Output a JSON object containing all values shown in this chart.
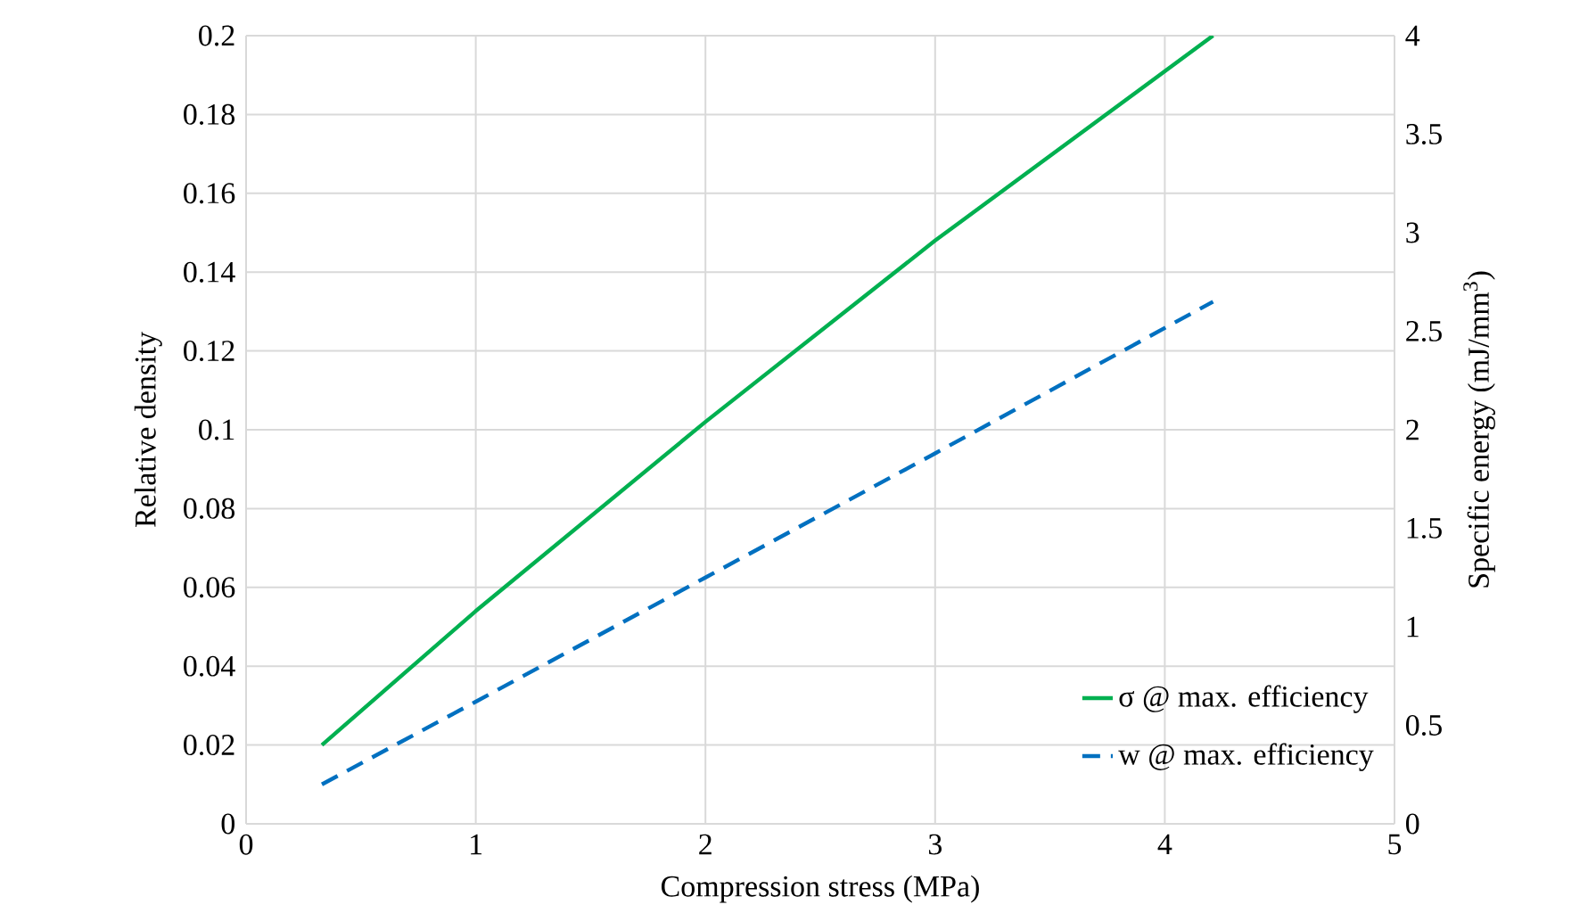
{
  "chart_data": {
    "type": "line",
    "xlabel": "Compression stress (MPa)",
    "ylabel": "Relative density",
    "y2label": "Specific energy (mJ/mm$^{3}$)",
    "xlim": [
      0,
      5
    ],
    "xticks": [
      0,
      1,
      2,
      3,
      4,
      5
    ],
    "ylim": [
      0,
      0.2
    ],
    "yticks": [
      0,
      0.02,
      0.04,
      0.06,
      0.08,
      0.1,
      0.12,
      0.14,
      0.16,
      0.18,
      0.2
    ],
    "y2lim": [
      0,
      4
    ],
    "y2ticks": [
      0,
      0.5,
      1,
      1.5,
      2,
      2.5,
      3,
      3.5,
      4
    ],
    "grid": true,
    "legend": "bottom right",
    "marker": "none",
    "series": [
      {
        "name": "σ @ max. efficiency",
        "color": "#00b050",
        "line_style": "solid",
        "x": [
          0.33,
          1,
          2,
          3,
          4.21
        ],
        "values": [
          0.02,
          0.054,
          0.102,
          0.148,
          0.2
        ]
      },
      {
        "name": "w @ max. efficiency",
        "color": "#0070c0",
        "line_style": "dashed",
        "axis": "y2",
        "x": [
          0.33,
          1,
          2,
          3,
          4.21
        ],
        "values": [
          0.2,
          0.62,
          1.25,
          1.88,
          2.65
        ]
      }
    ]
  }
}
